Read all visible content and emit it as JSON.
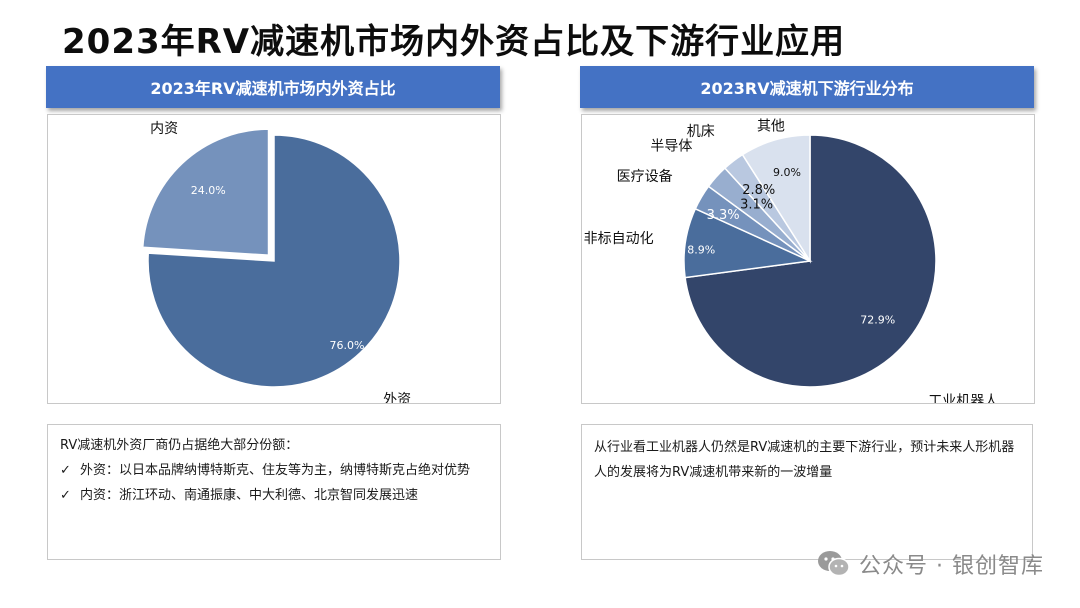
{
  "page": {
    "title": "2023年RV减速机市场内外资占比及下游行业应用"
  },
  "left_panel": {
    "header": "2023年RV减速机市场内外资占比",
    "note": {
      "intro": "RV减速机外资厂商仍占据绝大部分份额：",
      "items": [
        "外资：以日本品牌纳博特斯克、住友等为主，纳博特斯克占绝对优势",
        "内资：浙江环动、南通振康、中大利德、北京智同发展迅速"
      ]
    }
  },
  "right_panel": {
    "header": "2023RV减速机下游行业分布",
    "note": {
      "text": "从行业看工业机器人仍然是RV减速机的主要下游行业，预计未来人形机器人的发展将为RV减速机带来新的一波增量"
    }
  },
  "watermark": {
    "text": "公众号 · 银创智库",
    "icon": "wechat-icon"
  },
  "chart_data": [
    {
      "type": "pie",
      "title": "2023年RV减速机市场内外资占比",
      "slices": [
        {
          "label": "外资",
          "value": 76.0,
          "value_label": "76.0%",
          "color": "#4a6d9c"
        },
        {
          "label": "内资",
          "value": 24.0,
          "value_label": "24.0%",
          "color": "#7592bc"
        }
      ]
    },
    {
      "type": "pie",
      "title": "2023RV减速机下游行业分布",
      "slices": [
        {
          "label": "工业机器人",
          "value": 72.9,
          "value_label": "72.9%",
          "color": "#33456a"
        },
        {
          "label": "非标自动化",
          "value": 8.9,
          "value_label": "8.9%",
          "color": "#4a6d9c"
        },
        {
          "label": "医疗设备",
          "value": 3.3,
          "value_label": "3.3%",
          "color": "#7592bc"
        },
        {
          "label": "半导体",
          "value": 3.1,
          "value_label": "3.1%",
          "color": "#98aecf"
        },
        {
          "label": "机床",
          "value": 2.8,
          "value_label": "2.8%",
          "color": "#b9c8e0"
        },
        {
          "label": "其他",
          "value": 9.0,
          "value_label": "9.0%",
          "color": "#d9e1ee"
        }
      ]
    }
  ]
}
